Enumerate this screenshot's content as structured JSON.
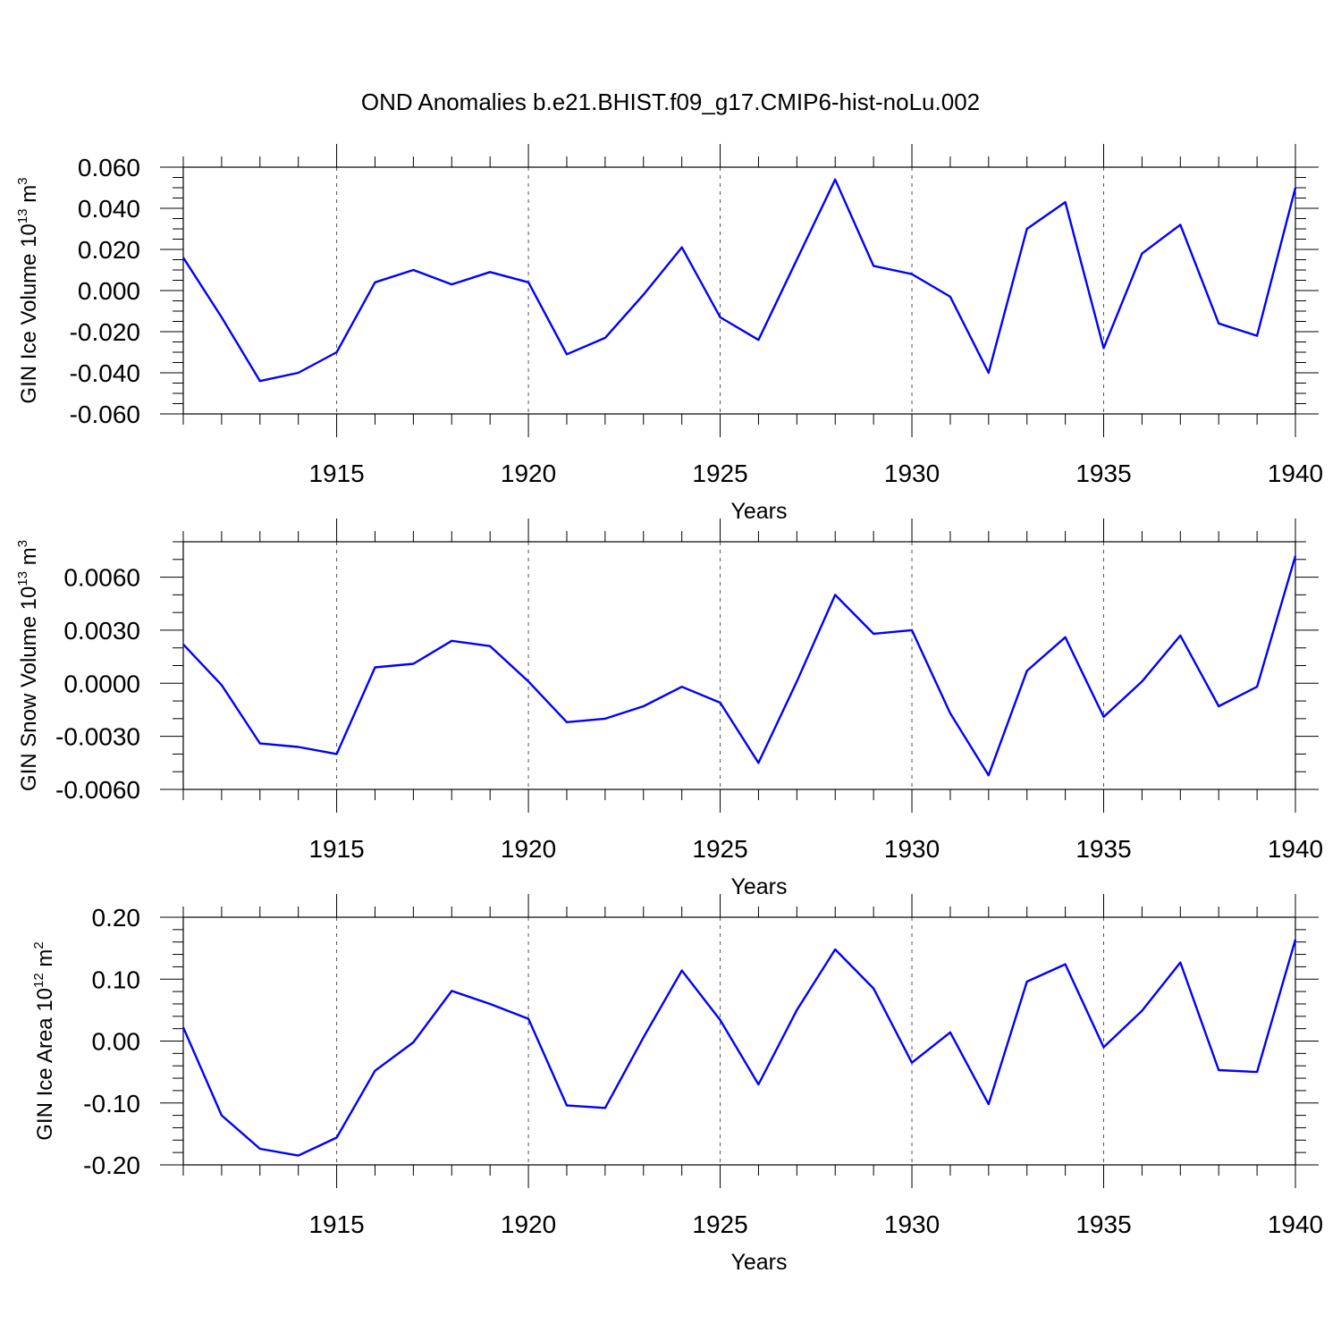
{
  "title": "OND Anomalies b.e21.BHIST.f09_g17.CMIP6-hist-noLu.002",
  "chart_data": [
    {
      "type": "line",
      "ylabel": {
        "text": "GIN Ice Volume 10",
        "exp": "13",
        "unit": "m",
        "unit_exp": "3"
      },
      "xlabel": "Years",
      "xlim": [
        1911,
        1940
      ],
      "ylim": [
        -0.06,
        0.06
      ],
      "xticks": [
        1915,
        1920,
        1925,
        1930,
        1935,
        1940
      ],
      "xtick_labels": [
        "1915",
        "1920",
        "1925",
        "1930",
        "1935",
        "1940"
      ],
      "yticks": [
        -0.06,
        -0.04,
        -0.02,
        0.0,
        0.02,
        0.04,
        0.06
      ],
      "ytick_labels": [
        "-0.060",
        "-0.040",
        "-0.020",
        "0.000",
        "0.020",
        "0.040",
        "0.060"
      ],
      "yminor": 0.005,
      "grid_x": true,
      "color": "#0000ff",
      "x": [
        1911,
        1912,
        1913,
        1914,
        1915,
        1916,
        1917,
        1918,
        1919,
        1920,
        1921,
        1922,
        1923,
        1924,
        1925,
        1926,
        1927,
        1928,
        1929,
        1930,
        1931,
        1932,
        1933,
        1934,
        1935,
        1936,
        1937,
        1938,
        1939,
        1940
      ],
      "y": [
        0.016,
        -0.013,
        -0.044,
        -0.04,
        -0.03,
        0.004,
        0.01,
        0.003,
        0.009,
        0.004,
        -0.031,
        -0.023,
        -0.002,
        0.021,
        -0.013,
        -0.024,
        0.015,
        0.054,
        0.012,
        0.008,
        -0.003,
        -0.04,
        0.03,
        0.043,
        -0.028,
        0.018,
        0.032,
        -0.016,
        -0.022,
        0.05
      ]
    },
    {
      "type": "line",
      "ylabel": {
        "text": "GIN Snow Volume 10",
        "exp": "13",
        "unit": "m",
        "unit_exp": "3"
      },
      "xlabel": "Years",
      "xlim": [
        1911,
        1940
      ],
      "ylim": [
        -0.006,
        0.008
      ],
      "xticks": [
        1915,
        1920,
        1925,
        1930,
        1935,
        1940
      ],
      "xtick_labels": [
        "1915",
        "1920",
        "1925",
        "1930",
        "1935",
        "1940"
      ],
      "yticks": [
        -0.006,
        -0.003,
        0.0,
        0.003,
        0.006
      ],
      "ytick_labels": [
        "-0.0060",
        "-0.0030",
        "0.0000",
        "0.0030",
        "0.0060"
      ],
      "yminor": 0.001,
      "grid_x": true,
      "color": "#0000ff",
      "x": [
        1911,
        1912,
        1913,
        1914,
        1915,
        1916,
        1917,
        1918,
        1919,
        1920,
        1921,
        1922,
        1923,
        1924,
        1925,
        1926,
        1927,
        1928,
        1929,
        1930,
        1931,
        1932,
        1933,
        1934,
        1935,
        1936,
        1937,
        1938,
        1939,
        1940
      ],
      "y": [
        0.0022,
        -0.0001,
        -0.0034,
        -0.0036,
        -0.004,
        0.0009,
        0.0011,
        0.0024,
        0.0021,
        0.0001,
        -0.0022,
        -0.002,
        -0.0013,
        -0.0002,
        -0.0011,
        -0.0045,
        0.0001,
        0.005,
        0.0028,
        0.003,
        -0.0017,
        -0.0052,
        0.0007,
        0.0026,
        -0.0019,
        0.0001,
        0.0027,
        -0.0013,
        -0.0002,
        0.0072
      ]
    },
    {
      "type": "line",
      "ylabel": {
        "text": "GIN Ice Area 10",
        "exp": "12",
        "unit": "m",
        "unit_exp": "2"
      },
      "xlabel": "Years",
      "xlim": [
        1911,
        1940
      ],
      "ylim": [
        -0.2,
        0.2
      ],
      "xticks": [
        1915,
        1920,
        1925,
        1930,
        1935,
        1940
      ],
      "xtick_labels": [
        "1915",
        "1920",
        "1925",
        "1930",
        "1935",
        "1940"
      ],
      "yticks": [
        -0.2,
        -0.1,
        0.0,
        0.1,
        0.2
      ],
      "ytick_labels": [
        "-0.20",
        "-0.10",
        "0.00",
        "0.10",
        "0.20"
      ],
      "yminor": 0.02,
      "grid_x": true,
      "color": "#0000ff",
      "x": [
        1911,
        1912,
        1913,
        1914,
        1915,
        1916,
        1917,
        1918,
        1919,
        1920,
        1921,
        1922,
        1923,
        1924,
        1925,
        1926,
        1927,
        1928,
        1929,
        1930,
        1931,
        1932,
        1933,
        1934,
        1935,
        1936,
        1937,
        1938,
        1939,
        1940
      ],
      "y": [
        0.022,
        -0.12,
        -0.174,
        -0.185,
        -0.156,
        -0.048,
        -0.002,
        0.081,
        0.06,
        0.036,
        -0.104,
        -0.108,
        0.006,
        0.114,
        0.034,
        -0.07,
        0.05,
        0.148,
        0.085,
        -0.035,
        0.014,
        -0.102,
        0.096,
        0.124,
        -0.01,
        0.049,
        0.127,
        -0.047,
        -0.05,
        0.164
      ]
    }
  ]
}
